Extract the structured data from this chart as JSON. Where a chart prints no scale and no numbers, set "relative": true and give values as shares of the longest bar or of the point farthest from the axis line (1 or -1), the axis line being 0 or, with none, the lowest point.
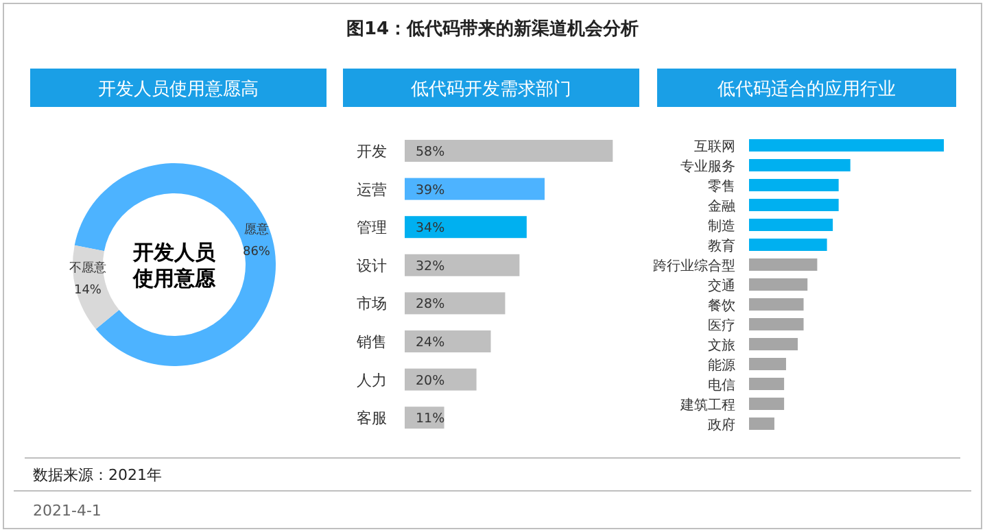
{
  "chart_data": [
    {
      "type": "other",
      "title": "图14：低代码带来的新渠道机会分析",
      "annotations": [
        "数据来源：2021年",
        "2021-4-1"
      ]
    },
    {
      "type": "donut",
      "title": "开发人员使用意愿高",
      "categories": [
        "愿意",
        "不愿意"
      ],
      "values": [
        86,
        14
      ],
      "value_labels": [
        "86%",
        "14%"
      ],
      "colors": [
        "#4db3ff",
        "#d9d9d9"
      ],
      "annotations": [
        "开发人员使用意愿"
      ]
    },
    {
      "type": "bar",
      "orientation": "horizontal",
      "title": "低代码开发需求部门",
      "categories": [
        "开发",
        "运营",
        "管理",
        "设计",
        "市场",
        "销售",
        "人力",
        "客服"
      ],
      "values": [
        58,
        39,
        34,
        32,
        28,
        24,
        20,
        11
      ],
      "value_labels": [
        "58%",
        "39%",
        "34%",
        "32%",
        "28%",
        "24%",
        "20%",
        "11%"
      ],
      "colors": [
        "#bfbfbf",
        "#4db3ff",
        "#00b0f0",
        "#bfbfbf",
        "#bfbfbf",
        "#bfbfbf",
        "#bfbfbf",
        "#bfbfbf"
      ]
    },
    {
      "type": "bar",
      "orientation": "horizontal",
      "relative": true,
      "title": "低代码适合的应用行业",
      "categories": [
        "互联网",
        "专业服务",
        "零售",
        "金融",
        "制造",
        "教育",
        "跨行业综合型",
        "交通",
        "餐饮",
        "医疗",
        "文旅",
        "能源",
        "电信",
        "建筑工程",
        "政府"
      ],
      "values": [
        1,
        0.52,
        0.46,
        0.46,
        0.43,
        0.4,
        0.35,
        0.3,
        0.28,
        0.28,
        0.25,
        0.19,
        0.18,
        0.18,
        0.13
      ],
      "colors": [
        "#00b0f0",
        "#00b0f0",
        "#00b0f0",
        "#00b0f0",
        "#00b0f0",
        "#00b0f0",
        "#a6a6a6",
        "#a6a6a6",
        "#a6a6a6",
        "#a6a6a6",
        "#a6a6a6",
        "#a6a6a6",
        "#a6a6a6",
        "#a6a6a6",
        "#a6a6a6"
      ]
    }
  ]
}
